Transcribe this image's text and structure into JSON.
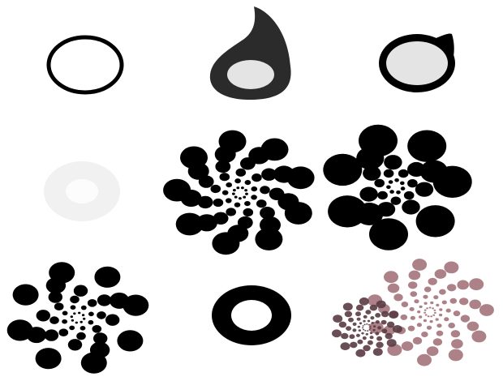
{
  "canvas": {
    "background": "#ffffff"
  },
  "colors": {
    "black": "#000000",
    "dark_gray": "#2b2b2b",
    "light_gray": "#e4e4e4",
    "ring_light": "#f1f1f1",
    "ring_inner": "#fcfcfc",
    "mauve": "#a87a82",
    "mauve_dark": "#5a3b44"
  },
  "cells": [
    {
      "name": "ellipse-outline",
      "kind": "outline-ellipse"
    },
    {
      "name": "teardrop-dark",
      "kind": "teardrop"
    },
    {
      "name": "ring-gray-fill",
      "kind": "ring-with-tail"
    },
    {
      "name": "faint-donut",
      "kind": "soft-ring"
    },
    {
      "name": "dot-spiral-full",
      "kind": "spiral"
    },
    {
      "name": "dot-spiral-sparse",
      "kind": "spiral"
    },
    {
      "name": "dot-spiral-scattered",
      "kind": "spiral"
    },
    {
      "name": "black-donut",
      "kind": "ring"
    },
    {
      "name": "overlapped-spirals",
      "kind": "spiral-overlay"
    }
  ]
}
